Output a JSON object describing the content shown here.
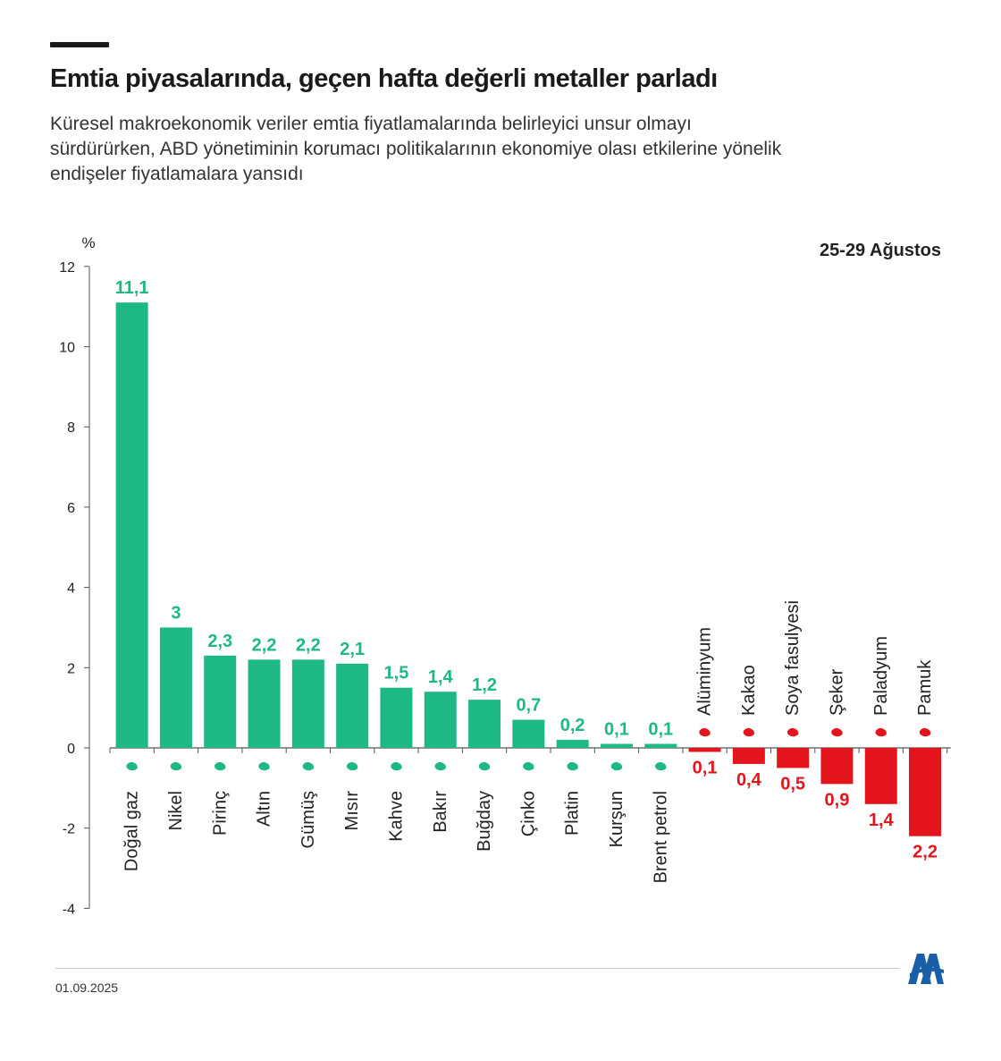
{
  "header": {
    "title": "Emtia piyasalarında, geçen hafta değerli metaller parladı",
    "subtitle_lines": [
      "Küresel makroekonomik veriler emtia fiyatlamalarında belirleyici unsur olmayı",
      "sürdürürken, ABD yönetiminin korumacı politikalarının ekonomiye olası etkilerine yönelik",
      "endişeler fiyatlamalara yansıdı"
    ]
  },
  "footer": {
    "date": "01.09.2025",
    "logo": "aa-logo"
  },
  "colors": {
    "positive": "#1db884",
    "negative": "#e3141c",
    "axis": "#555555",
    "text": "#222222"
  },
  "chart_data": {
    "type": "bar",
    "ylabel": "%",
    "period_label": "25-29 Ağustos",
    "ylim": [
      -4,
      12
    ],
    "yticks": [
      "12",
      "10",
      "8",
      "6",
      "4",
      "2",
      "0",
      "-2",
      "-4"
    ],
    "ytick_values": [
      12,
      10,
      8,
      6,
      4,
      2,
      0,
      -2,
      -4
    ],
    "categories": [
      "Doğal gaz",
      "Nikel",
      "Pirinç",
      "Altın",
      "Gümüş",
      "Mısır",
      "Kahve",
      "Bakır",
      "Buğday",
      "Çinko",
      "Platin",
      "Kurşun",
      "Brent petrol",
      "Alüminyum",
      "Kakao",
      "Soya fasulyesi",
      "Şeker",
      "Paladyum",
      "Pamuk"
    ],
    "values": [
      11.1,
      3,
      2.3,
      2.2,
      2.2,
      2.1,
      1.5,
      1.4,
      1.2,
      0.7,
      0.2,
      0.1,
      0.1,
      -0.1,
      -0.4,
      -0.5,
      -0.9,
      -1.4,
      -2.2
    ],
    "data_labels": [
      "11,1",
      "3",
      "2,3",
      "2,2",
      "2,2",
      "2,1",
      "1,5",
      "1,4",
      "1,2",
      "0,7",
      "0,2",
      "0,1",
      "0,1",
      "0,1",
      "0,4",
      "0,5",
      "0,9",
      "1,4",
      "2,2"
    ],
    "icons": [
      "flame-icon",
      "metal-bars-icon",
      "rice-sack-icon",
      "metal-bars-icon",
      "metal-bars-icon",
      "corn-leaf-icon",
      "coffee-bean-icon",
      "metal-bars-icon",
      "wheat-icon",
      "metal-bars-icon",
      "metal-bars-icon",
      "metal-bars-icon",
      "oil-barrel-icon",
      "metal-bars-icon",
      "cocoa-pod-icon",
      "soybean-icon",
      "sugar-sack-icon",
      "metal-bars-icon",
      "cotton-icon"
    ]
  }
}
